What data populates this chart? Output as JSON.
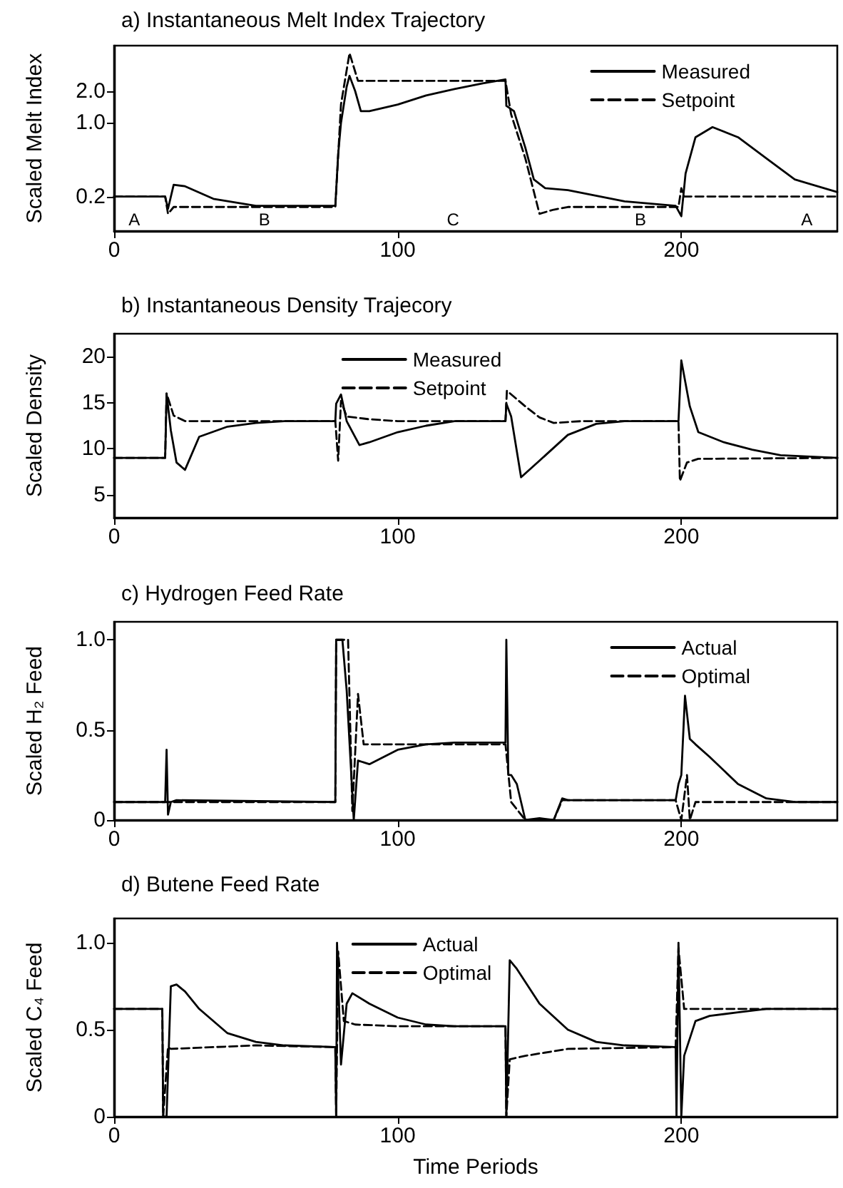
{
  "chart_data": [
    {
      "type": "line",
      "title": "a) Instantaneous Melt Index Trajectory",
      "ylabel": "Scaled Melt Index",
      "log": "y",
      "xlim": [
        0,
        255
      ],
      "xticks": [
        0,
        100,
        200
      ],
      "ylim": [
        0.094,
        5.4
      ],
      "yticks": [
        {
          "value": 0.2,
          "label": "0.2"
        },
        {
          "value": 1,
          "label": "1.0"
        },
        {
          "value": 2,
          "label": "2.0"
        }
      ],
      "grid": false,
      "legend": "top right",
      "marker": "none",
      "annotations": [
        "A",
        "B",
        "C",
        "B",
        "A"
      ],
      "series": [
        {
          "name": "Measured",
          "color": "#000000",
          "line_style": "solid",
          "x": [
            0,
            18,
            19,
            21,
            25,
            35,
            50,
            78,
            79,
            80,
            82,
            83,
            85,
            87,
            90,
            100,
            110,
            120,
            130,
            138,
            138.3,
            141,
            145,
            148,
            152,
            160,
            180,
            198,
            200,
            201.5,
            205,
            211,
            220,
            230,
            240,
            255
          ],
          "values": [
            0.2,
            0.2,
            0.153,
            0.258,
            0.25,
            0.19,
            0.163,
            0.163,
            0.5,
            1.0,
            2.2,
            2.79,
            2.0,
            1.29,
            1.29,
            1.49,
            1.82,
            2.09,
            2.37,
            2.58,
            1.45,
            1.29,
            0.58,
            0.29,
            0.24,
            0.23,
            0.18,
            0.163,
            0.13,
            0.33,
            0.73,
            0.91,
            0.73,
            0.46,
            0.29,
            0.22
          ]
        },
        {
          "name": "Setpoint",
          "color": "#000000",
          "line_style": "dashed",
          "x": [
            0,
            18,
            19,
            21,
            78,
            80,
            83,
            86,
            100,
            138,
            140,
            145,
            150,
            155,
            160,
            199,
            200,
            201,
            255
          ],
          "values": [
            0.2,
            0.2,
            0.137,
            0.159,
            0.159,
            1.5,
            4.58,
            2.5,
            2.5,
            2.5,
            1.2,
            0.46,
            0.137,
            0.15,
            0.159,
            0.159,
            0.24,
            0.2,
            0.2
          ]
        }
      ]
    },
    {
      "type": "line",
      "title": "b) Instantaneous Density Trajecory",
      "ylabel": "Scaled Density",
      "xlim": [
        0,
        255
      ],
      "xticks": [
        0,
        100,
        200
      ],
      "ylim": [
        2.5,
        22.5
      ],
      "yticks": [
        5,
        10,
        15,
        20
      ],
      "grid": false,
      "legend": "top",
      "marker": "none",
      "series": [
        {
          "name": "Measured",
          "color": "#000000",
          "line_style": "solid",
          "x": [
            0,
            18,
            18.5,
            20,
            22,
            25,
            30,
            40,
            50,
            60,
            78,
            78.3,
            80,
            82,
            86.5,
            90,
            100,
            110,
            120,
            138,
            138.3,
            140,
            143.5,
            150,
            160,
            170,
            180,
            199,
            200,
            203,
            206,
            215,
            225,
            235,
            255
          ],
          "values": [
            9.0,
            9.0,
            16.0,
            12.0,
            8.5,
            7.7,
            11.3,
            12.4,
            12.8,
            13.0,
            13.0,
            14.9,
            15.9,
            13.0,
            10.4,
            10.7,
            11.8,
            12.5,
            13.0,
            13.0,
            14.9,
            13.5,
            6.9,
            8.7,
            11.5,
            12.7,
            13.0,
            13.0,
            19.6,
            14.6,
            11.8,
            10.7,
            9.9,
            9.3,
            9.0
          ]
        },
        {
          "name": "Setpoint",
          "color": "#000000",
          "line_style": "dashed",
          "x": [
            0,
            18,
            18.5,
            21,
            25,
            78,
            79,
            80,
            82,
            90,
            100,
            138,
            138.5,
            145,
            150,
            155,
            165,
            199,
            199.5,
            202,
            206,
            255
          ],
          "values": [
            9.0,
            9.0,
            16.0,
            13.6,
            13.0,
            13.0,
            8.7,
            15.2,
            13.5,
            13.2,
            13.0,
            13.0,
            16.3,
            14.6,
            13.4,
            12.8,
            13.0,
            13.0,
            6.5,
            8.5,
            8.9,
            9.0
          ]
        }
      ]
    },
    {
      "type": "line",
      "title": "c) Hydrogen Feed Rate",
      "ylabel": "Scaled H₂ Feed",
      "xlim": [
        0,
        255
      ],
      "xticks": [
        0,
        100,
        200
      ],
      "ylim": [
        0,
        1.1
      ],
      "yticks": [
        0,
        0.5,
        {
          "value": 1,
          "label": "1.0"
        }
      ],
      "grid": false,
      "legend": "top right",
      "marker": "none",
      "series": [
        {
          "name": "Actual",
          "color": "#000000",
          "line_style": "solid",
          "x": [
            0,
            18,
            18.5,
            19,
            20,
            22,
            78,
            78.3,
            80.5,
            82,
            84.5,
            86,
            90,
            100,
            110,
            120,
            138,
            138.3,
            139,
            140,
            142,
            145,
            150,
            155,
            158,
            160,
            198,
            199,
            200,
            201.3,
            203,
            205,
            210,
            220,
            230,
            240,
            255
          ],
          "values": [
            0.1,
            0.1,
            0.39,
            0.03,
            0.1,
            0.11,
            0.1,
            1.0,
            1.0,
            0.72,
            0.0,
            0.33,
            0.31,
            0.39,
            0.42,
            0.43,
            0.43,
            1.0,
            0.25,
            0.25,
            0.2,
            0.0,
            0.01,
            0.0,
            0.12,
            0.11,
            0.11,
            0.2,
            0.25,
            0.69,
            0.45,
            0.42,
            0.35,
            0.2,
            0.12,
            0.1,
            0.1
          ]
        },
        {
          "name": "Optimal",
          "color": "#000000",
          "line_style": "dashed",
          "x": [
            0,
            78,
            78.3,
            82.5,
            84,
            86,
            88,
            100,
            138,
            140,
            145,
            155,
            158,
            198,
            200,
            202,
            203,
            205,
            255
          ],
          "values": [
            0.1,
            0.1,
            1.0,
            1.0,
            0.05,
            0.7,
            0.42,
            0.42,
            0.42,
            0.1,
            0.0,
            0.0,
            0.11,
            0.11,
            0.0,
            0.25,
            0.0,
            0.1,
            0.1
          ]
        }
      ]
    },
    {
      "type": "line",
      "title": "d) Butene Feed Rate",
      "xlabel": "Time Periods",
      "ylabel": "Scaled C₄ Feed",
      "xlim": [
        0,
        255
      ],
      "xticks": [
        0,
        100,
        200
      ],
      "ylim": [
        0,
        1.14
      ],
      "yticks": [
        0,
        0.5,
        {
          "value": 1,
          "label": "1.0"
        }
      ],
      "grid": false,
      "legend": "top",
      "marker": "none",
      "series": [
        {
          "name": "Actual",
          "color": "#000000",
          "line_style": "solid",
          "x": [
            0,
            17,
            17.3,
            18.5,
            20,
            22,
            25,
            30,
            40,
            50,
            60,
            78,
            78.3,
            78.6,
            80,
            82,
            84,
            90,
            100,
            110,
            120,
            138,
            138.3,
            139.5,
            142,
            150,
            160,
            170,
            180,
            198,
            198.3,
            199,
            200,
            201,
            205,
            210,
            220,
            230,
            255
          ],
          "values": [
            0.62,
            0.62,
            0.0,
            0.0,
            0.75,
            0.76,
            0.72,
            0.62,
            0.48,
            0.43,
            0.41,
            0.4,
            0.0,
            1.0,
            0.3,
            0.65,
            0.71,
            0.65,
            0.57,
            0.53,
            0.52,
            0.52,
            0.0,
            0.9,
            0.85,
            0.65,
            0.5,
            0.43,
            0.41,
            0.4,
            0.0,
            1.0,
            0.0,
            0.35,
            0.55,
            0.58,
            0.6,
            0.62,
            0.62
          ]
        },
        {
          "name": "Optimal",
          "color": "#000000",
          "line_style": "dashed",
          "x": [
            0,
            17,
            17.3,
            19,
            20,
            50,
            78,
            78.3,
            79,
            81,
            85,
            100,
            138,
            138.3,
            139.5,
            145,
            160,
            198,
            199,
            201,
            255
          ],
          "values": [
            0.62,
            0.62,
            0.0,
            0.4,
            0.39,
            0.41,
            0.4,
            0.0,
            0.95,
            0.55,
            0.53,
            0.52,
            0.52,
            0.0,
            0.33,
            0.35,
            0.39,
            0.4,
            0.97,
            0.62,
            0.62
          ]
        }
      ]
    }
  ]
}
